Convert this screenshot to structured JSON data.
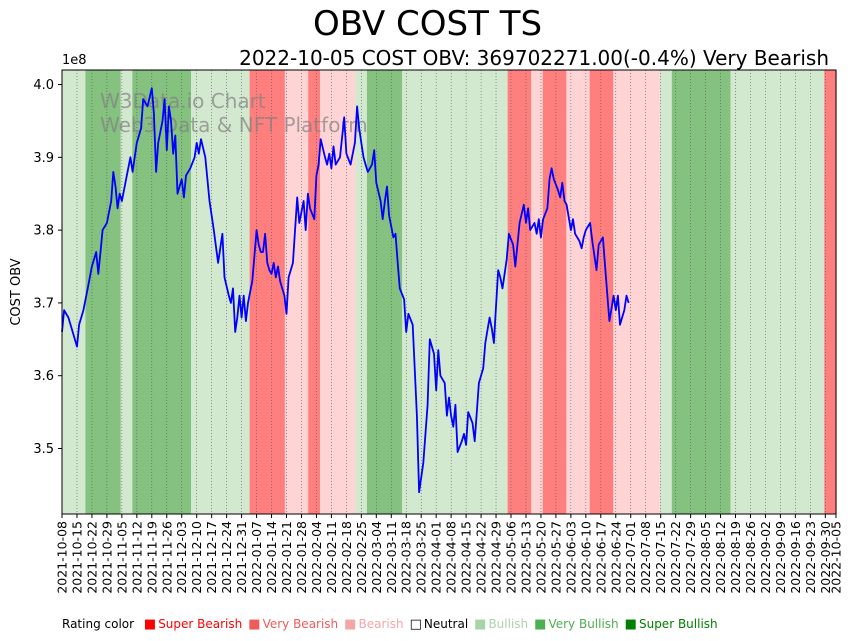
{
  "chart_data": {
    "type": "line",
    "title": "OBV COST TS",
    "subtitle": "2022-10-05 COST OBV: 369702271.00(-0.4%) Very Bearish",
    "ylabel": "COST OBV",
    "y_multiplier": "1e8",
    "ylim": [
      3.41,
      4.02
    ],
    "yticks": [
      "3.5",
      "3.6",
      "3.7",
      "3.8",
      "3.9",
      "4.0"
    ],
    "ytick_values": [
      3.5,
      3.6,
      3.7,
      3.8,
      3.9,
      4.0
    ],
    "xlim_days": [
      0,
      362
    ],
    "xtick_labels": [
      "2021-10-08",
      "2021-10-15",
      "2021-10-22",
      "2021-10-29",
      "2021-11-05",
      "2021-11-12",
      "2021-11-19",
      "2021-11-26",
      "2021-12-03",
      "2021-12-10",
      "2021-12-17",
      "2021-12-24",
      "2021-12-31",
      "2022-01-07",
      "2022-01-14",
      "2022-01-21",
      "2022-01-28",
      "2022-02-04",
      "2022-02-11",
      "2022-02-18",
      "2022-02-25",
      "2022-03-04",
      "2022-03-11",
      "2022-03-18",
      "2022-03-25",
      "2022-04-01",
      "2022-04-08",
      "2022-04-15",
      "2022-04-22",
      "2022-04-29",
      "2022-05-06",
      "2022-05-13",
      "2022-05-20",
      "2022-05-27",
      "2022-06-03",
      "2022-06-10",
      "2022-06-17",
      "2022-06-24",
      "2022-07-01",
      "2022-07-08",
      "2022-07-15",
      "2022-07-22",
      "2022-07-29",
      "2022-08-05",
      "2022-08-12",
      "2022-08-19",
      "2022-08-26",
      "2022-09-02",
      "2022-09-09",
      "2022-09-16",
      "2022-09-23",
      "2022-09-30",
      "2022-10-05"
    ],
    "xtick_days": [
      0,
      7,
      14,
      21,
      28,
      35,
      42,
      49,
      56,
      63,
      70,
      77,
      84,
      91,
      98,
      105,
      112,
      119,
      126,
      133,
      140,
      147,
      154,
      161,
      168,
      175,
      182,
      189,
      196,
      203,
      210,
      217,
      224,
      231,
      238,
      245,
      252,
      259,
      266,
      273,
      280,
      287,
      294,
      301,
      308,
      315,
      322,
      329,
      336,
      343,
      350,
      357,
      362
    ],
    "series": [
      {
        "name": "COST OBV",
        "color": "#0000ff",
        "points": [
          [
            0,
            3.66
          ],
          [
            1,
            3.69
          ],
          [
            3,
            3.68
          ],
          [
            5,
            3.66
          ],
          [
            7,
            3.64
          ],
          [
            8,
            3.67
          ],
          [
            10,
            3.69
          ],
          [
            12,
            3.72
          ],
          [
            14,
            3.75
          ],
          [
            16,
            3.77
          ],
          [
            17,
            3.74
          ],
          [
            18,
            3.77
          ],
          [
            19,
            3.8
          ],
          [
            21,
            3.81
          ],
          [
            23,
            3.84
          ],
          [
            24,
            3.88
          ],
          [
            25,
            3.86
          ],
          [
            26,
            3.83
          ],
          [
            27,
            3.85
          ],
          [
            28,
            3.84
          ],
          [
            30,
            3.87
          ],
          [
            32,
            3.9
          ],
          [
            33,
            3.88
          ],
          [
            35,
            3.92
          ],
          [
            37,
            3.94
          ],
          [
            38,
            3.98
          ],
          [
            40,
            3.97
          ],
          [
            42,
            3.995
          ],
          [
            43,
            3.96
          ],
          [
            44,
            3.88
          ],
          [
            45,
            3.92
          ],
          [
            47,
            3.95
          ],
          [
            48,
            3.98
          ],
          [
            49,
            3.91
          ],
          [
            50,
            3.97
          ],
          [
            51,
            3.95
          ],
          [
            52,
            3.905
          ],
          [
            53,
            3.93
          ],
          [
            54,
            3.85
          ],
          [
            56,
            3.87
          ],
          [
            57,
            3.845
          ],
          [
            58,
            3.875
          ],
          [
            60,
            3.885
          ],
          [
            62,
            3.9
          ],
          [
            63,
            3.92
          ],
          [
            64,
            3.905
          ],
          [
            65,
            3.925
          ],
          [
            67,
            3.9
          ],
          [
            69,
            3.84
          ],
          [
            71,
            3.8
          ],
          [
            73,
            3.755
          ],
          [
            75,
            3.795
          ],
          [
            76,
            3.735
          ],
          [
            78,
            3.71
          ],
          [
            79,
            3.7
          ],
          [
            80,
            3.72
          ],
          [
            81,
            3.66
          ],
          [
            82,
            3.68
          ],
          [
            83,
            3.71
          ],
          [
            84,
            3.68
          ],
          [
            85,
            3.71
          ],
          [
            86,
            3.675
          ],
          [
            87,
            3.7
          ],
          [
            89,
            3.73
          ],
          [
            91,
            3.8
          ],
          [
            92,
            3.78
          ],
          [
            93,
            3.77
          ],
          [
            94,
            3.77
          ],
          [
            95,
            3.795
          ],
          [
            96,
            3.755
          ],
          [
            97,
            3.745
          ],
          [
            98,
            3.74
          ],
          [
            99,
            3.755
          ],
          [
            100,
            3.735
          ],
          [
            101,
            3.75
          ],
          [
            102,
            3.73
          ],
          [
            104,
            3.71
          ],
          [
            105,
            3.685
          ],
          [
            106,
            3.735
          ],
          [
            108,
            3.755
          ],
          [
            110,
            3.845
          ],
          [
            111,
            3.81
          ],
          [
            113,
            3.84
          ],
          [
            114,
            3.8
          ],
          [
            115,
            3.85
          ],
          [
            116,
            3.83
          ],
          [
            118,
            3.815
          ],
          [
            119,
            3.875
          ],
          [
            120,
            3.89
          ],
          [
            121,
            3.925
          ],
          [
            123,
            3.9
          ],
          [
            124,
            3.89
          ],
          [
            125,
            3.905
          ],
          [
            126,
            3.885
          ],
          [
            127,
            3.915
          ],
          [
            128,
            3.89
          ],
          [
            130,
            3.9
          ],
          [
            132,
            3.955
          ],
          [
            133,
            3.905
          ],
          [
            135,
            3.89
          ],
          [
            137,
            3.92
          ],
          [
            138,
            3.97
          ],
          [
            139,
            3.94
          ],
          [
            140,
            3.92
          ],
          [
            141,
            3.9
          ],
          [
            142,
            3.89
          ],
          [
            143,
            3.88
          ],
          [
            145,
            3.89
          ],
          [
            146,
            3.91
          ],
          [
            147,
            3.865
          ],
          [
            149,
            3.84
          ],
          [
            150,
            3.815
          ],
          [
            151,
            3.84
          ],
          [
            152,
            3.86
          ],
          [
            153,
            3.82
          ],
          [
            155,
            3.79
          ],
          [
            156,
            3.795
          ],
          [
            157,
            3.755
          ],
          [
            158,
            3.72
          ],
          [
            160,
            3.705
          ],
          [
            161,
            3.66
          ],
          [
            162,
            3.685
          ],
          [
            164,
            3.67
          ],
          [
            166,
            3.545
          ],
          [
            167,
            3.44
          ],
          [
            169,
            3.48
          ],
          [
            171,
            3.56
          ],
          [
            172,
            3.65
          ],
          [
            174,
            3.63
          ],
          [
            175,
            3.58
          ],
          [
            176,
            3.635
          ],
          [
            177,
            3.6
          ],
          [
            179,
            3.59
          ],
          [
            180,
            3.545
          ],
          [
            181,
            3.57
          ],
          [
            182,
            3.545
          ],
          [
            183,
            3.53
          ],
          [
            184,
            3.56
          ],
          [
            185,
            3.495
          ],
          [
            187,
            3.51
          ],
          [
            188,
            3.52
          ],
          [
            189,
            3.505
          ],
          [
            190,
            3.55
          ],
          [
            192,
            3.535
          ],
          [
            193,
            3.51
          ],
          [
            194,
            3.55
          ],
          [
            195,
            3.59
          ],
          [
            197,
            3.61
          ],
          [
            198,
            3.645
          ],
          [
            200,
            3.68
          ],
          [
            201,
            3.665
          ],
          [
            202,
            3.645
          ],
          [
            203,
            3.695
          ],
          [
            204,
            3.745
          ],
          [
            205,
            3.735
          ],
          [
            206,
            3.72
          ],
          [
            208,
            3.76
          ],
          [
            209,
            3.795
          ],
          [
            211,
            3.78
          ],
          [
            212,
            3.75
          ],
          [
            214,
            3.81
          ],
          [
            216,
            3.835
          ],
          [
            217,
            3.81
          ],
          [
            218,
            3.83
          ],
          [
            219,
            3.8
          ],
          [
            221,
            3.81
          ],
          [
            222,
            3.795
          ],
          [
            223,
            3.815
          ],
          [
            224,
            3.79
          ],
          [
            225,
            3.815
          ],
          [
            227,
            3.83
          ],
          [
            228,
            3.87
          ],
          [
            229,
            3.885
          ],
          [
            230,
            3.87
          ],
          [
            232,
            3.855
          ],
          [
            233,
            3.845
          ],
          [
            234,
            3.865
          ],
          [
            235,
            3.84
          ],
          [
            236,
            3.835
          ],
          [
            238,
            3.8
          ],
          [
            239,
            3.815
          ],
          [
            240,
            3.795
          ],
          [
            242,
            3.785
          ],
          [
            243,
            3.775
          ],
          [
            244,
            3.79
          ],
          [
            245,
            3.8
          ],
          [
            247,
            3.81
          ],
          [
            248,
            3.785
          ],
          [
            249,
            3.765
          ],
          [
            250,
            3.745
          ],
          [
            251,
            3.78
          ],
          [
            253,
            3.79
          ],
          [
            254,
            3.75
          ],
          [
            256,
            3.675
          ],
          [
            258,
            3.71
          ],
          [
            259,
            3.69
          ],
          [
            260,
            3.71
          ],
          [
            261,
            3.67
          ],
          [
            263,
            3.69
          ],
          [
            264,
            3.71
          ],
          [
            265,
            3.7
          ]
        ]
      }
    ],
    "ratings_by_week": [
      "Bullish",
      "Bullish",
      "Very Bullish",
      "Very Bullish",
      "Very Bullish",
      "Bullish",
      "Very Bullish",
      "Very Bullish",
      "Very Bullish",
      "Very Bullish",
      "Very Bullish",
      "Bullish",
      "Bullish",
      "Bullish",
      "Bullish",
      "Bullish",
      "Very Bearish",
      "Very Bearish",
      "Very Bearish",
      "Bearish",
      "Bearish",
      "Very Bearish",
      "Bearish",
      "Bearish",
      "Bearish",
      "Bullish",
      "Very Bullish",
      "Very Bullish",
      "Very Bullish",
      "Bullish",
      "Bullish",
      "Bullish",
      "Bullish",
      "Bullish",
      "Bullish",
      "Bullish",
      "Bullish",
      "Bullish",
      "Very Bearish",
      "Very Bearish",
      "Bearish",
      "Very Bearish",
      "Very Bearish",
      "Bearish",
      "Bearish",
      "Very Bearish",
      "Very Bearish",
      "Bearish",
      "Bearish",
      "Bearish",
      "Bearish",
      "Bullish",
      "Very Bullish",
      "Very Bullish",
      "Very Bullish",
      "Very Bullish",
      "Very Bullish",
      "Bullish",
      "Bullish",
      "Bullish",
      "Bullish",
      "Bullish",
      "Bullish",
      "Bullish",
      "Bullish",
      "Very Bearish"
    ],
    "legend": {
      "label": "Rating color",
      "items": [
        {
          "name": "Super Bearish",
          "color": "#ff0000",
          "band": "#ff0000"
        },
        {
          "name": "Very Bearish",
          "color": "#f05a5a",
          "band": "#ff7f7f"
        },
        {
          "name": "Bearish",
          "color": "#f4a6a6",
          "band": "#ffd4d4"
        },
        {
          "name": "Neutral",
          "color": "#000000",
          "band": "#ffffff"
        },
        {
          "name": "Bullish",
          "color": "#a8d5a8",
          "band": "#d3e9cf"
        },
        {
          "name": "Very Bullish",
          "color": "#4caf50",
          "band": "#85c17f"
        },
        {
          "name": "Super Bullish",
          "color": "#008000",
          "band": "#2e8b2e"
        }
      ]
    },
    "watermark": [
      "W3Data.io Chart",
      "Web3 Data & NFT Platform"
    ]
  }
}
